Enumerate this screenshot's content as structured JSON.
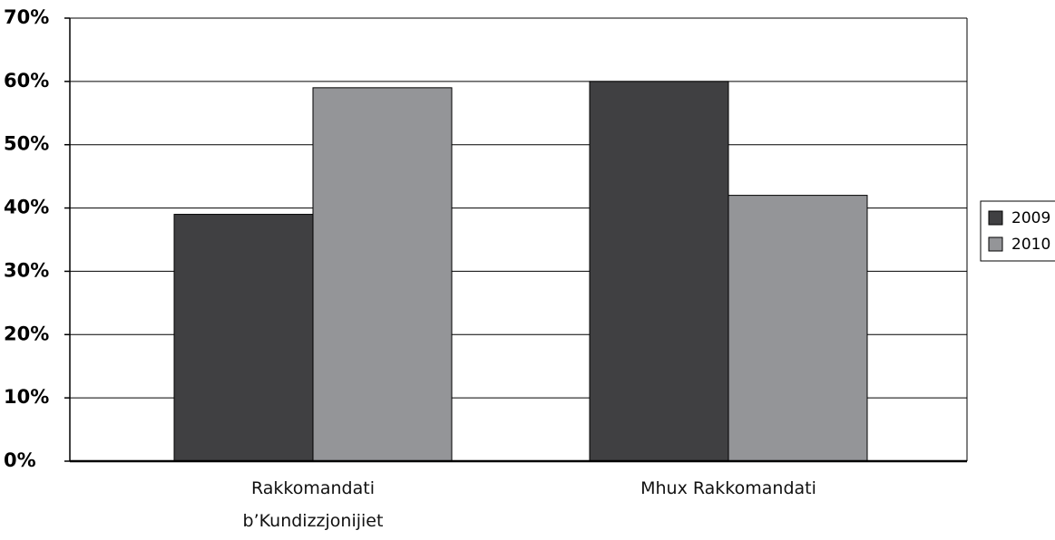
{
  "chart_data": {
    "type": "bar",
    "categories": [
      "Rakkomandati b’Kundizzjonijiet",
      "Mhux Rakkomandati"
    ],
    "series": [
      {
        "name": "2009",
        "color": "#404042",
        "values": [
          39,
          60
        ]
      },
      {
        "name": "2010",
        "color": "#949598",
        "values": [
          59,
          42
        ]
      }
    ],
    "ylim": [
      0,
      70
    ],
    "yticks": [
      {
        "value": 0,
        "label": "0%"
      },
      {
        "value": 10,
        "label": "10%"
      },
      {
        "value": 20,
        "label": "20%"
      },
      {
        "value": 30,
        "label": "30%"
      },
      {
        "value": 40,
        "label": "40%"
      },
      {
        "value": 50,
        "label": "50%"
      },
      {
        "value": 60,
        "label": "60%"
      },
      {
        "value": 70,
        "label": "70%"
      }
    ],
    "grid": true,
    "legend": "right"
  }
}
